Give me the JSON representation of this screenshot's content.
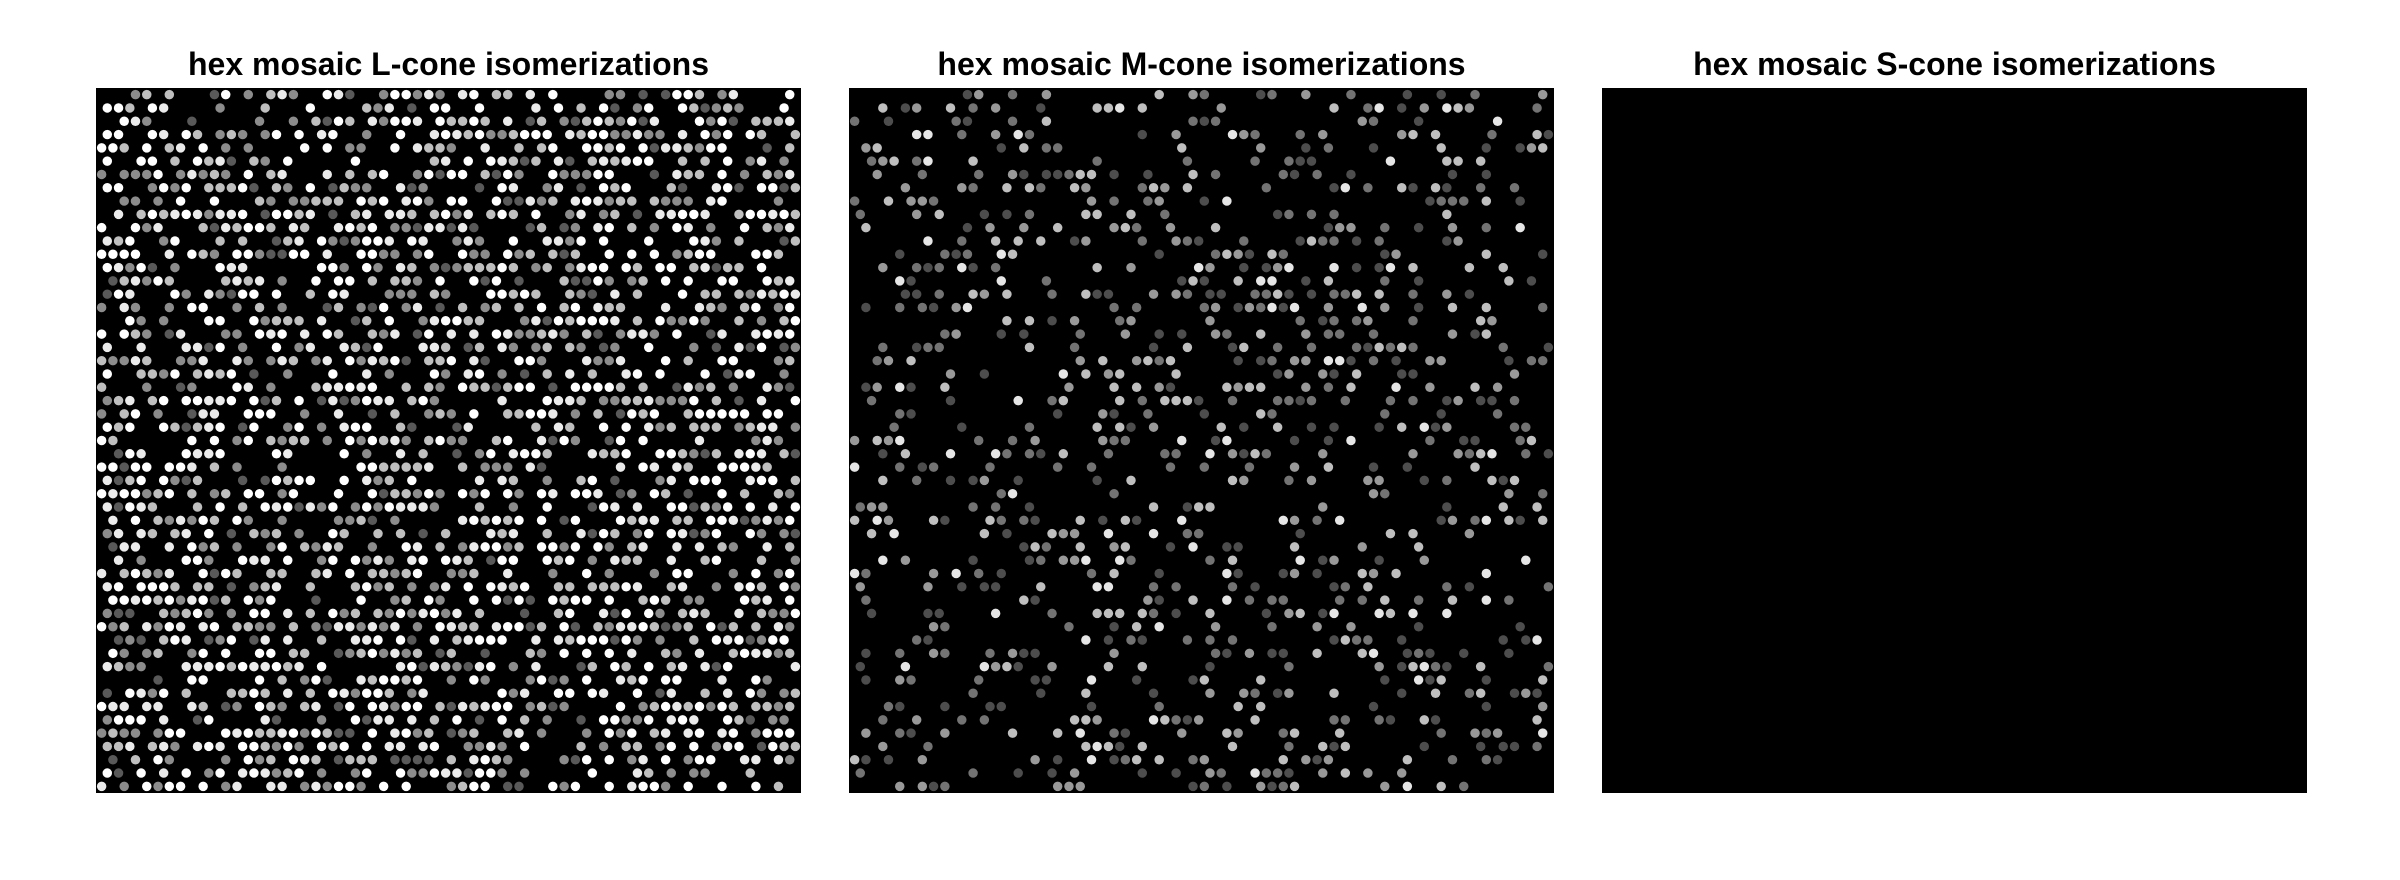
{
  "chart_data": [
    {
      "type": "heatmap",
      "title": "hex mosaic L-cone isomerizations",
      "colormap": "gray",
      "background_color": "#000000",
      "lattice": "hexagonal",
      "grid_columns": 62,
      "grid_rows": 53,
      "cone_fraction": 0.6,
      "active_intensity_levels": [
        0.35,
        0.55,
        0.75,
        0.92,
        1.0
      ],
      "active_level_weights": [
        0.1,
        0.2,
        0.2,
        0.2,
        0.3
      ],
      "response_summary": "dense bright isomerizations across the whole mosaic"
    },
    {
      "type": "heatmap",
      "title": "hex mosaic M-cone isomerizations",
      "colormap": "gray",
      "background_color": "#000000",
      "lattice": "hexagonal",
      "grid_columns": 62,
      "grid_rows": 53,
      "cone_fraction": 0.3,
      "active_intensity_levels": [
        0.3,
        0.45,
        0.6,
        0.75,
        0.9
      ],
      "active_level_weights": [
        0.25,
        0.25,
        0.2,
        0.2,
        0.1
      ],
      "response_summary": "sparse dim-to-mid isomerizations"
    },
    {
      "type": "heatmap",
      "title": "hex mosaic S-cone isomerizations",
      "colormap": "gray",
      "background_color": "#000000",
      "lattice": "hexagonal",
      "grid_columns": 62,
      "grid_rows": 53,
      "cone_fraction": 0.0,
      "active_intensity_levels": [],
      "active_level_weights": [],
      "response_summary": "no visible isomerizations (uniform black)"
    }
  ]
}
